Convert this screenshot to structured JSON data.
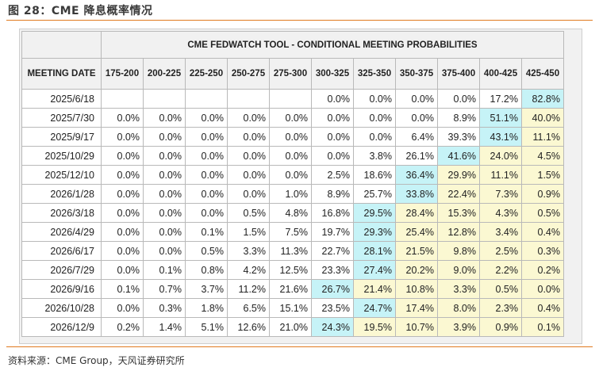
{
  "caption": "图 28：CME 降息概率情况",
  "source": "资料来源：CME Group，天风证券研究所",
  "colors": {
    "accent_line": "#e07a1f",
    "highlight_max": "#c6f3f7",
    "highlight_above_max": "#fbf8d2"
  },
  "table": {
    "title": "CME FEDWATCH TOOL - CONDITIONAL MEETING PROBABILITIES",
    "date_header": "MEETING DATE",
    "ranges": [
      "175-200",
      "200-225",
      "225-250",
      "250-275",
      "275-300",
      "300-325",
      "325-350",
      "350-375",
      "375-400",
      "400-425",
      "425-450"
    ],
    "rows": [
      {
        "date": "2025/6/18",
        "values": [
          "",
          "",
          "",
          "",
          "",
          "0.0%",
          "0.0%",
          "0.0%",
          "0.0%",
          "17.2%",
          "82.8%"
        ],
        "styles": [
          "",
          "",
          "",
          "",
          "",
          "",
          "",
          "",
          "",
          "",
          "b"
        ]
      },
      {
        "date": "2025/7/30",
        "values": [
          "0.0%",
          "0.0%",
          "0.0%",
          "0.0%",
          "0.0%",
          "0.0%",
          "0.0%",
          "0.0%",
          "8.9%",
          "51.1%",
          "40.0%"
        ],
        "styles": [
          "",
          "",
          "",
          "",
          "",
          "",
          "",
          "",
          "",
          "b",
          "y"
        ]
      },
      {
        "date": "2025/9/17",
        "values": [
          "0.0%",
          "0.0%",
          "0.0%",
          "0.0%",
          "0.0%",
          "0.0%",
          "0.0%",
          "6.4%",
          "39.3%",
          "43.1%",
          "11.1%"
        ],
        "styles": [
          "",
          "",
          "",
          "",
          "",
          "",
          "",
          "",
          "",
          "b",
          "y"
        ]
      },
      {
        "date": "2025/10/29",
        "values": [
          "0.0%",
          "0.0%",
          "0.0%",
          "0.0%",
          "0.0%",
          "0.0%",
          "3.8%",
          "26.1%",
          "41.6%",
          "24.0%",
          "4.5%"
        ],
        "styles": [
          "",
          "",
          "",
          "",
          "",
          "",
          "",
          "",
          "b",
          "y",
          "y"
        ]
      },
      {
        "date": "2025/12/10",
        "values": [
          "0.0%",
          "0.0%",
          "0.0%",
          "0.0%",
          "0.0%",
          "2.5%",
          "18.6%",
          "36.4%",
          "29.9%",
          "11.1%",
          "1.5%"
        ],
        "styles": [
          "",
          "",
          "",
          "",
          "",
          "",
          "",
          "b",
          "y",
          "y",
          "y"
        ]
      },
      {
        "date": "2026/1/28",
        "values": [
          "0.0%",
          "0.0%",
          "0.0%",
          "0.0%",
          "1.0%",
          "8.9%",
          "25.7%",
          "33.8%",
          "22.4%",
          "7.3%",
          "0.9%"
        ],
        "styles": [
          "",
          "",
          "",
          "",
          "",
          "",
          "",
          "b",
          "y",
          "y",
          "y"
        ]
      },
      {
        "date": "2026/3/18",
        "values": [
          "0.0%",
          "0.0%",
          "0.0%",
          "0.5%",
          "4.8%",
          "16.8%",
          "29.5%",
          "28.4%",
          "15.3%",
          "4.3%",
          "0.5%"
        ],
        "styles": [
          "",
          "",
          "",
          "",
          "",
          "",
          "b",
          "y",
          "y",
          "y",
          "y"
        ]
      },
      {
        "date": "2026/4/29",
        "values": [
          "0.0%",
          "0.0%",
          "0.1%",
          "1.5%",
          "7.5%",
          "19.7%",
          "29.3%",
          "25.4%",
          "12.8%",
          "3.4%",
          "0.4%"
        ],
        "styles": [
          "",
          "",
          "",
          "",
          "",
          "",
          "b",
          "y",
          "y",
          "y",
          "y"
        ]
      },
      {
        "date": "2026/6/17",
        "values": [
          "0.0%",
          "0.0%",
          "0.5%",
          "3.3%",
          "11.3%",
          "22.7%",
          "28.1%",
          "21.5%",
          "9.8%",
          "2.5%",
          "0.3%"
        ],
        "styles": [
          "",
          "",
          "",
          "",
          "",
          "",
          "b",
          "y",
          "y",
          "y",
          "y"
        ]
      },
      {
        "date": "2026/7/29",
        "values": [
          "0.0%",
          "0.1%",
          "0.8%",
          "4.2%",
          "12.5%",
          "23.3%",
          "27.4%",
          "20.2%",
          "9.0%",
          "2.2%",
          "0.2%"
        ],
        "styles": [
          "",
          "",
          "",
          "",
          "",
          "",
          "b",
          "y",
          "y",
          "y",
          "y"
        ]
      },
      {
        "date": "2026/9/16",
        "values": [
          "0.1%",
          "0.7%",
          "3.7%",
          "11.2%",
          "21.6%",
          "26.7%",
          "21.4%",
          "10.8%",
          "3.3%",
          "0.5%",
          "0.0%"
        ],
        "styles": [
          "",
          "",
          "",
          "",
          "",
          "b",
          "y",
          "y",
          "y",
          "y",
          "y"
        ]
      },
      {
        "date": "2026/10/28",
        "values": [
          "0.0%",
          "0.3%",
          "1.8%",
          "6.5%",
          "15.1%",
          "23.5%",
          "24.7%",
          "17.4%",
          "8.0%",
          "2.3%",
          "0.4%"
        ],
        "styles": [
          "",
          "",
          "",
          "",
          "",
          "",
          "b",
          "y",
          "y",
          "y",
          "y"
        ]
      },
      {
        "date": "2026/12/9",
        "values": [
          "0.2%",
          "1.4%",
          "5.1%",
          "12.6%",
          "21.0%",
          "24.3%",
          "19.5%",
          "10.7%",
          "3.9%",
          "0.9%",
          "0.1%"
        ],
        "styles": [
          "",
          "",
          "",
          "",
          "",
          "b",
          "y",
          "y",
          "y",
          "y",
          "y"
        ]
      }
    ]
  }
}
